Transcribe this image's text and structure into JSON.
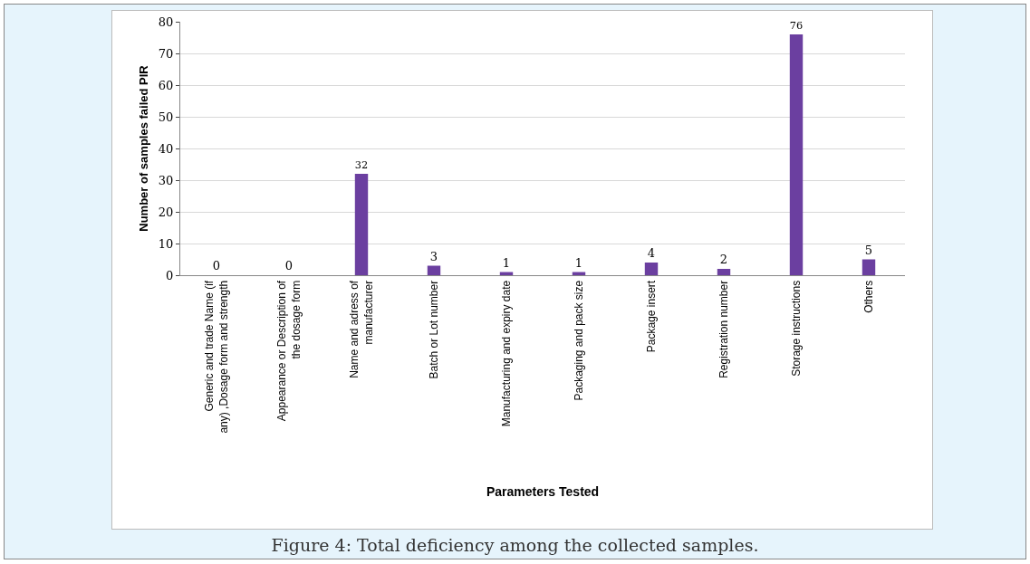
{
  "chart_data": {
    "type": "bar",
    "xlabel": "Parameters Tested",
    "ylabel": "Number of samples failed PIR",
    "categories": [
      "Generic and trade Name (if any) ,Dosage form and strength",
      "Appearance or Description of the dosage form",
      "Name and adress of manufacturer",
      "Batch or Lot number",
      "Manufacturing and expiry date",
      "Packaging and pack size",
      "Package insert",
      "Registration number",
      "Storage instructions",
      "Others"
    ],
    "values": [
      0,
      0,
      32,
      3,
      1,
      1,
      4,
      2,
      76,
      5
    ],
    "color": "#6b3fa0",
    "ylim": [
      0,
      80
    ],
    "yticks": [
      0,
      10,
      20,
      30,
      40,
      50,
      60,
      70,
      80
    ],
    "grid": "y",
    "data_labels": true,
    "annotations": [
      "Figure 4: Total deficiency among the collected samples."
    ]
  }
}
